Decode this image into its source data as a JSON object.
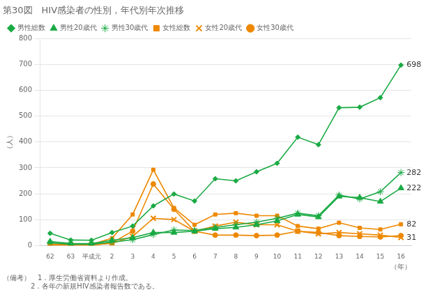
{
  "chart_data": {
    "type": "line",
    "title": "第30図　HIV感染者の性別，年代別年次推移",
    "y_label": "（人）",
    "x_label": "（年）",
    "footnotes": [
      "（備考）　1．厚生労働省資料より作成。",
      "　　　　2．各年の新規HIV感染者報告数である。"
    ],
    "categories": [
      "62",
      "63",
      "平成元",
      "2",
      "3",
      "4",
      "5",
      "6",
      "7",
      "8",
      "9",
      "10",
      "11",
      "12",
      "13",
      "14",
      "15",
      "16"
    ],
    "series": [
      {
        "name": "男性総数",
        "color": "#1aaa44",
        "marker": "diamond",
        "values": [
          47,
          21,
          20,
          50,
          75,
          153,
          199,
          172,
          258,
          250,
          285,
          318,
          419,
          390,
          533,
          535,
          572,
          698
        ]
      },
      {
        "name": "男性20歳代",
        "color": "#1aaa44",
        "marker": "triangle",
        "values": [
          15,
          8,
          7,
          20,
          30,
          50,
          50,
          55,
          65,
          70,
          80,
          95,
          120,
          110,
          190,
          185,
          170,
          222
        ]
      },
      {
        "name": "男性30歳代",
        "color": "#1aaa44",
        "marker": "star",
        "values": [
          10,
          5,
          5,
          13,
          22,
          42,
          60,
          58,
          70,
          80,
          90,
          105,
          125,
          115,
          195,
          180,
          208,
          282
        ]
      },
      {
        "name": "女性総数",
        "color": "#ee8800",
        "marker": "square",
        "values": [
          5,
          3,
          4,
          28,
          120,
          293,
          145,
          80,
          120,
          125,
          115,
          115,
          75,
          65,
          88,
          68,
          62,
          82
        ]
      },
      {
        "name": "女性20歳代",
        "color": "#ee8800",
        "marker": "x",
        "values": [
          2,
          1,
          2,
          8,
          35,
          105,
          100,
          55,
          75,
          90,
          80,
          80,
          55,
          45,
          50,
          45,
          40,
          31
        ]
      },
      {
        "name": "女性30歳代",
        "color": "#ee8800",
        "marker": "circle",
        "values": [
          1,
          1,
          1,
          10,
          55,
          238,
          140,
          55,
          40,
          40,
          38,
          40,
          55,
          50,
          38,
          35,
          33,
          38
        ]
      }
    ],
    "annotations": [
      {
        "text": "698",
        "x": "16",
        "y": 698
      },
      {
        "text": "222",
        "x": "16",
        "y": 222
      },
      {
        "text": "282",
        "x": "16",
        "y": 282
      },
      {
        "text": "82",
        "x": "16",
        "y": 82
      },
      {
        "text": "31",
        "x": "16",
        "y": 31
      }
    ],
    "ylim": [
      0,
      800
    ],
    "yticks": [
      0,
      100,
      200,
      300,
      400,
      500,
      600,
      700,
      800
    ],
    "grid": true,
    "legend": "upper left"
  }
}
